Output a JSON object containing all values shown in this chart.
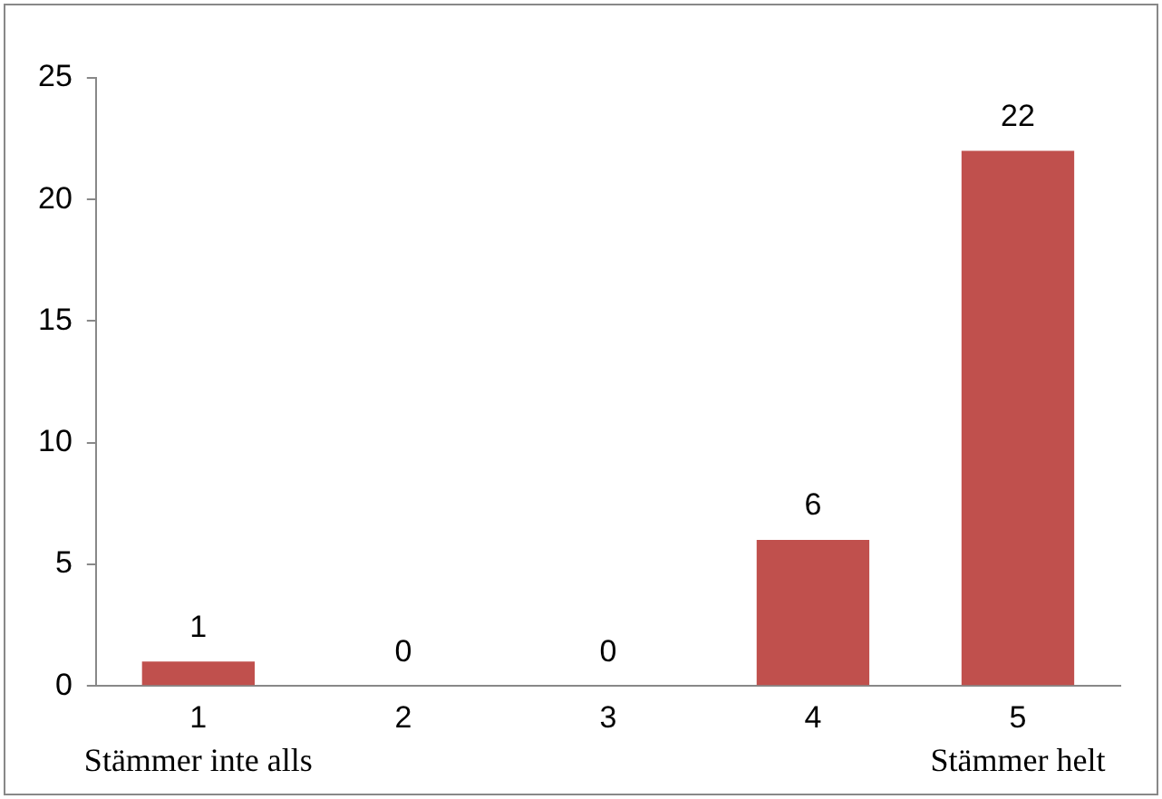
{
  "chart_data": {
    "type": "bar",
    "categories": [
      "1",
      "2",
      "3",
      "4",
      "5"
    ],
    "values": [
      1,
      0,
      0,
      6,
      22
    ],
    "color": "#c0504d",
    "ylim": [
      0,
      25
    ],
    "yticks": [
      0,
      5,
      10,
      15,
      20,
      25
    ],
    "grid": false,
    "legend": false,
    "data_labels": true,
    "annotations": [
      "Stämmer inte alls",
      "Stämmer helt"
    ]
  }
}
